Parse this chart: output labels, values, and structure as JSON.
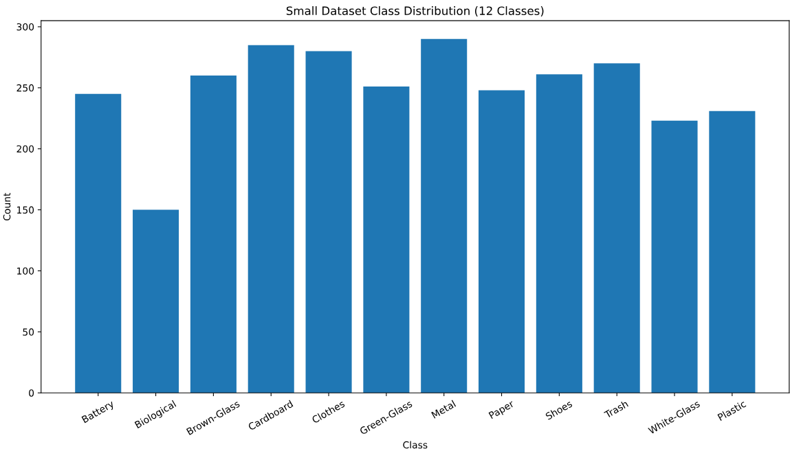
{
  "chart_data": {
    "type": "bar",
    "title": "Small Dataset Class Distribution (12 Classes)",
    "xlabel": "Class",
    "ylabel": "Count",
    "categories": [
      "Battery",
      "Biological",
      "Brown-Glass",
      "Cardboard",
      "Clothes",
      "Green-Glass",
      "Metal",
      "Paper",
      "Shoes",
      "Trash",
      "White-Glass",
      "Plastic"
    ],
    "values": [
      245,
      150,
      260,
      285,
      280,
      251,
      290,
      248,
      261,
      270,
      223,
      231
    ],
    "color": "#1f77b4",
    "ylim": [
      0,
      305
    ],
    "yticks": [
      0,
      50,
      100,
      150,
      200,
      250,
      300
    ],
    "grid": false,
    "legend": false
  }
}
